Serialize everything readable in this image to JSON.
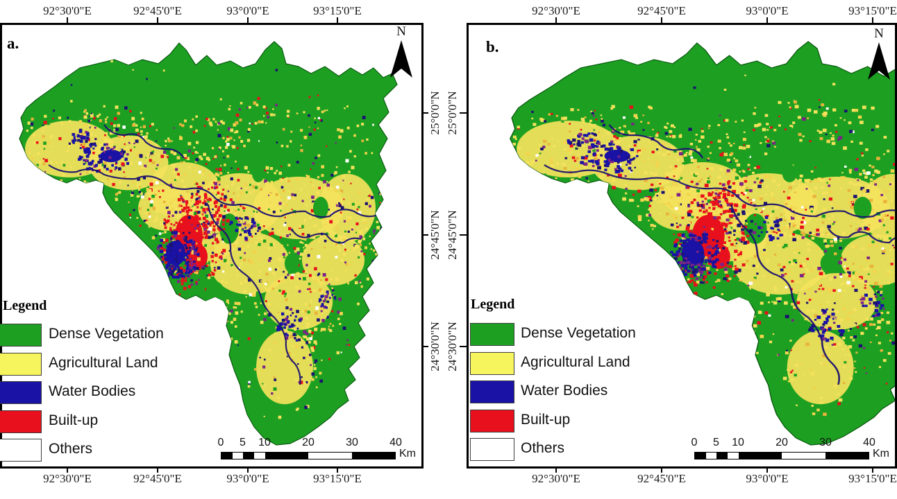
{
  "figure": {
    "background": "#ffffff",
    "type": "land-use-classification-maps"
  },
  "map_colors": {
    "dense_vegetation": "#1da021",
    "agricultural_land": "#f7f55e",
    "water_bodies": "#1a12a5",
    "built_up": "#e8101c",
    "others": "#ffffff",
    "outline": "#0a5a10",
    "river": "#1b1270",
    "agri_base": "#f4e25c",
    "agri_gold": "#f3d44e",
    "agri_orange": "#eab33c",
    "purple_mix": "#7c2387"
  },
  "panels": [
    {
      "label": "a.",
      "north_label": "N",
      "top_ticks": [
        "92°30'0\"E",
        "92°45'0\"E",
        "93°0'0\"E",
        "93°15'0\"E"
      ],
      "bottom_ticks": [
        "92°30'0\"E",
        "92°45'0\"E",
        "93°0'0\"E",
        "93°15'0\"E"
      ],
      "lat_ticks": [
        "25°0'0\"N",
        "24°45'0\"N",
        "24°30'0\"N"
      ],
      "legend": {
        "title": "Legend",
        "items": [
          {
            "label": "Dense Vegetation",
            "color": "#1da021"
          },
          {
            "label": "Agricultural Land",
            "color": "#f7f55e"
          },
          {
            "label": "Water Bodies",
            "color": "#1a12a5"
          },
          {
            "label": "Built-up",
            "color": "#e8101c"
          },
          {
            "label": "Others",
            "color": "#ffffff"
          }
        ]
      },
      "scalebar": {
        "numbers": [
          "0",
          "5",
          "10",
          "20",
          "30",
          "40"
        ],
        "unit": "Km"
      }
    },
    {
      "label": "b.",
      "north_label": "N",
      "top_ticks": [
        "92°30'0\"E",
        "92°45'0\"E",
        "93°0'0\"E",
        "93°15'0\"E"
      ],
      "bottom_ticks": [
        "92°30'0\"E",
        "92°45'0\"E",
        "93°0'0\"E",
        "93°15'0\"E"
      ],
      "lat_ticks": [
        "25°0'0\"N",
        "24°45'0\"N",
        "24°30'0\"N"
      ],
      "legend": {
        "title": "Legend",
        "items": [
          {
            "label": "Dense Vegetation",
            "color": "#1da021"
          },
          {
            "label": "Agricultural Land",
            "color": "#f7f55e"
          },
          {
            "label": "Water Bodies",
            "color": "#1a12a5"
          },
          {
            "label": "Built-up",
            "color": "#e8101c"
          },
          {
            "label": "Others",
            "color": "#ffffff"
          }
        ]
      },
      "scalebar": {
        "numbers": [
          "0",
          "5",
          "10",
          "20",
          "30",
          "40"
        ],
        "unit": "Km"
      }
    }
  ]
}
